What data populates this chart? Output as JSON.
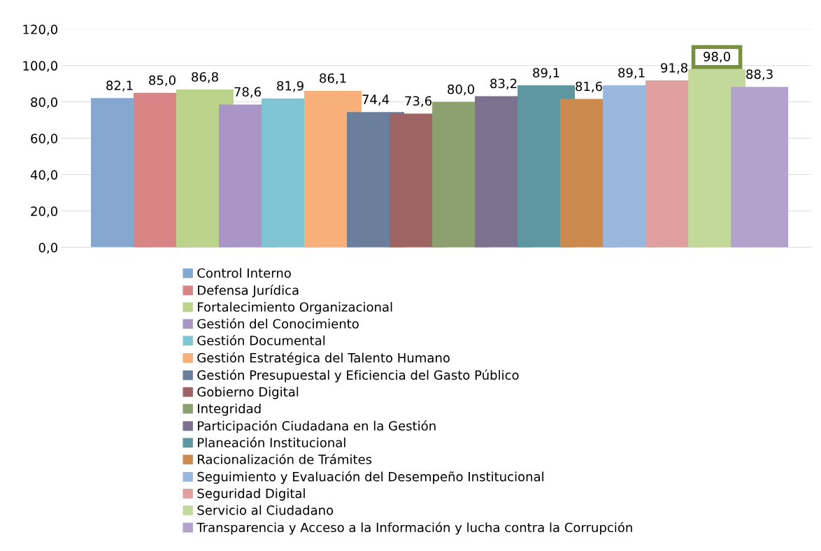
{
  "chart_data": {
    "type": "bar",
    "categories": [
      null
    ],
    "series": [
      {
        "name": "Control Interno",
        "color": "#86a8d0",
        "values": [
          82.1
        ],
        "value_labels": [
          "82,1"
        ]
      },
      {
        "name": "Defensa Jurídica",
        "color": "#d98585",
        "values": [
          85.0
        ],
        "value_labels": [
          "85,0"
        ]
      },
      {
        "name": "Fortalecimiento Organizacional",
        "color": "#bcd38c",
        "values": [
          86.8
        ],
        "value_labels": [
          "86,8"
        ]
      },
      {
        "name": "Gestión del Conocimiento",
        "color": "#a995c6",
        "values": [
          78.6
        ],
        "value_labels": [
          "78,6"
        ]
      },
      {
        "name": "Gestión Documental",
        "color": "#80c4d6",
        "values": [
          81.9
        ],
        "value_labels": [
          "81,9"
        ]
      },
      {
        "name": "Gestión Estratégica del Talento Humano",
        "color": "#f8b07a",
        "values": [
          86.1
        ],
        "value_labels": [
          "86,1"
        ]
      },
      {
        "name": "Gestión Presupuestal y Eficiencia del Gasto Público",
        "color": "#6b7f9c",
        "values": [
          74.4
        ],
        "value_labels": [
          "74,4"
        ]
      },
      {
        "name": "Gobierno Digital",
        "color": "#9e6363",
        "values": [
          73.6
        ],
        "value_labels": [
          "73,6"
        ]
      },
      {
        "name": "Integridad",
        "color": "#8da070",
        "values": [
          80.0
        ],
        "value_labels": [
          "80,0"
        ]
      },
      {
        "name": "Participación Ciudadana en la Gestión",
        "color": "#7e708f",
        "values": [
          83.2
        ],
        "value_labels": [
          "83,2"
        ]
      },
      {
        "name": "Planeación Institucional",
        "color": "#5e97a0",
        "values": [
          89.1
        ],
        "value_labels": [
          "89,1"
        ]
      },
      {
        "name": "Racionalización de Trámites",
        "color": "#cd8a4e",
        "values": [
          81.6
        ],
        "value_labels": [
          "81,6"
        ]
      },
      {
        "name": "Seguimiento y Evaluación del Desempeño Institucional",
        "color": "#9ab8de",
        "values": [
          89.1
        ],
        "value_labels": [
          "89,1"
        ]
      },
      {
        "name": "Seguridad Digital",
        "color": "#e0a0a0",
        "values": [
          91.8
        ],
        "value_labels": [
          "91,8"
        ]
      },
      {
        "name": "Servicio al Ciudadano",
        "color": "#c3d99b",
        "values": [
          98.0
        ],
        "value_labels": [
          "98,0"
        ]
      },
      {
        "name": "Transparencia y Acceso a la Información y lucha contra la Corrupción",
        "color": "#b3a3cc",
        "values": [
          88.3
        ],
        "value_labels": [
          "88,3"
        ]
      }
    ],
    "ylim": [
      0,
      120
    ],
    "yticks": [
      {
        "value": 0,
        "label": "0,0"
      },
      {
        "value": 20,
        "label": "20,0"
      },
      {
        "value": 40,
        "label": "40,0"
      },
      {
        "value": 60,
        "label": "60,0"
      },
      {
        "value": 80,
        "label": "80,0"
      },
      {
        "value": 100,
        "label": "100,0"
      },
      {
        "value": 120,
        "label": "120,0"
      }
    ],
    "grid": "y",
    "legend": "bottom",
    "tick_labels": "y"
  }
}
